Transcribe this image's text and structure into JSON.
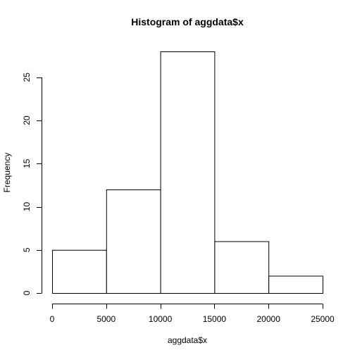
{
  "chart_data": {
    "type": "bar",
    "title": "Histogram of aggdata$x",
    "xlabel": "aggdata$x",
    "ylabel": "Frequency",
    "bins": [
      {
        "from": 0,
        "to": 5000,
        "count": 5
      },
      {
        "from": 5000,
        "to": 10000,
        "count": 12
      },
      {
        "from": 10000,
        "to": 15000,
        "count": 28
      },
      {
        "from": 15000,
        "to": 20000,
        "count": 6
      },
      {
        "from": 20000,
        "to": 25000,
        "count": 2
      }
    ],
    "xlim": [
      0,
      25000
    ],
    "ylim": [
      0,
      28
    ],
    "xticks": [
      0,
      5000,
      10000,
      15000,
      20000,
      25000
    ],
    "yticks": [
      0,
      5,
      10,
      15,
      20,
      25
    ],
    "grid": false,
    "legend": "none"
  }
}
